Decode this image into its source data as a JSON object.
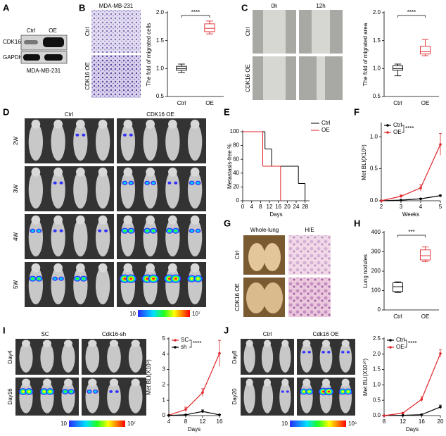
{
  "panels": [
    "A",
    "B",
    "C",
    "D",
    "E",
    "F",
    "G",
    "H",
    "I",
    "J"
  ],
  "blot": {
    "cols": [
      "Ctrl",
      "OE"
    ],
    "rows": [
      "CDK16",
      "GAPDH"
    ],
    "caption": "MDA-MB-231"
  },
  "transwell": {
    "title": "MDA-MB-231",
    "rows": [
      "Ctrl",
      "CDK16 OE"
    ]
  },
  "wound": {
    "cols": [
      "0h",
      "12h"
    ],
    "rows": [
      "Ctrl",
      "CDK16 OE"
    ]
  },
  "imaging_d": {
    "cols": [
      "Ctrl",
      "CDK16 OE"
    ],
    "rows": [
      "2W",
      "3W",
      "4W",
      "5W"
    ],
    "scale": [
      "10",
      "10⁷"
    ]
  },
  "lung": {
    "cols": [
      "Whole-lung",
      "H/E"
    ],
    "rows": [
      "Ctrl",
      "CDK16 OE"
    ]
  },
  "imaging_i": {
    "cols": [
      "SC",
      "Cdk16-sh"
    ],
    "rows": [
      "Day4",
      "Day16"
    ],
    "scale": [
      "10",
      "10⁷"
    ]
  },
  "imaging_j": {
    "cols": [
      "Ctrl",
      "Cdk16 OE"
    ],
    "rows": [
      "Day8",
      "Day20"
    ],
    "scale": [
      "10",
      "10⁶"
    ]
  },
  "chart_data": [
    {
      "type": "box",
      "ylabel": "The fold of migrated cells",
      "categories": [
        "Ctrl",
        "OE"
      ],
      "values": [
        [
          0.93,
          0.97,
          1.0,
          1.04,
          1.08
        ],
        [
          1.62,
          1.66,
          1.72,
          1.8,
          1.85
        ]
      ],
      "colors": [
        "#000000",
        "#e0262a"
      ],
      "ylim": [
        0.5,
        2.0
      ],
      "yticks": [
        0.5,
        {
          "value": 1.0,
          "label": "1.0"
        },
        1.5,
        {
          "value": 2.0,
          "label": "2.0"
        }
      ],
      "annotation": "****"
    },
    {
      "type": "box",
      "ylabel": "The fold of migrated area",
      "categories": [
        "Ctrl",
        "OE"
      ],
      "values": [
        [
          0.87,
          0.97,
          1.0,
          1.05,
          1.08
        ],
        [
          1.23,
          1.26,
          1.3,
          1.4,
          1.52
        ]
      ],
      "colors": [
        "#000000",
        "#e0262a"
      ],
      "ylim": [
        0.5,
        2.0
      ],
      "yticks": [
        0.5,
        {
          "value": 1.0,
          "label": "1.0"
        },
        1.5,
        {
          "value": 2.0,
          "label": "2.0"
        }
      ],
      "annotation": "****"
    },
    {
      "type": "step",
      "ylabel": "Metastasis-free %",
      "xlabel": "Days",
      "series": [
        {
          "name": "Ctrl",
          "color": "#000000",
          "x": [
            0,
            10,
            13,
            25,
            28
          ],
          "values": [
            100,
            75,
            50,
            25,
            0
          ]
        },
        {
          "name": "OE",
          "color": "#e0262a",
          "x": [
            0,
            9,
            17
          ],
          "values": [
            100,
            50,
            0
          ]
        }
      ],
      "xlim": [
        0,
        30
      ],
      "xticks": [
        0,
        4,
        8,
        12,
        16,
        20,
        24,
        28
      ],
      "ylim": [
        0,
        100
      ],
      "yticks": [
        0,
        20,
        40,
        60,
        80,
        100
      ],
      "legend": "upper right"
    },
    {
      "type": "line",
      "ylabel": "Met BLI(X10⁸)",
      "xlabel": "Weeks",
      "x": [
        2,
        3,
        4,
        5
      ],
      "series": [
        {
          "name": "Ctrl",
          "color": "#000000",
          "values": [
            0.0,
            0.01,
            0.03,
            0.08
          ],
          "errors": [
            0.0,
            0.0,
            0.01,
            0.01
          ]
        },
        {
          "name": "OE",
          "color": "#e0262a",
          "values": [
            0.0,
            0.07,
            0.2,
            0.88
          ],
          "errors": [
            0.01,
            0.02,
            0.05,
            0.17
          ]
        }
      ],
      "xlim": [
        2,
        5
      ],
      "xticks": [
        2,
        3,
        4,
        5
      ],
      "ylim": [
        0,
        1.2
      ],
      "yticks": [
        {
          "value": 0,
          "label": "0.0"
        },
        0.5,
        {
          "value": 1.0,
          "label": "1.0"
        }
      ],
      "legend": "upper left",
      "annotation": "****"
    },
    {
      "type": "box",
      "ylabel": "Lung nodules",
      "categories": [
        "Ctrl",
        "OE"
      ],
      "values": [
        [
          90,
          95,
          120,
          140,
          145
        ],
        [
          250,
          258,
          280,
          310,
          325
        ]
      ],
      "colors": [
        "#000000",
        "#e0262a"
      ],
      "ylim": [
        0,
        400
      ],
      "yticks": [
        0,
        100,
        200,
        300,
        400
      ],
      "annotation": "***"
    },
    {
      "type": "line",
      "ylabel": "Met BLI(X10⁸)",
      "xlabel": "Days",
      "x": [
        4,
        8,
        12,
        16
      ],
      "series": [
        {
          "name": "SC",
          "color": "#e0262a",
          "values": [
            0.02,
            0.4,
            1.5,
            4.05
          ],
          "errors": [
            0.01,
            0.15,
            0.25,
            0.85
          ]
        },
        {
          "name": "sh",
          "color": "#000000",
          "values": [
            0.01,
            0.05,
            0.27,
            0.05
          ],
          "errors": [
            0.0,
            0.02,
            0.1,
            0.02
          ]
        }
      ],
      "xlim": [
        4,
        16
      ],
      "xticks": [
        4,
        8,
        12,
        16
      ],
      "ylim": [
        0,
        5
      ],
      "yticks": [
        0,
        1,
        2,
        3,
        4,
        5
      ],
      "legend": "upper left",
      "annotation": "****"
    },
    {
      "type": "line",
      "ylabel": "Met BLI(X10¹⁰)",
      "xlabel": "Days",
      "x": [
        8,
        12,
        16,
        20
      ],
      "series": [
        {
          "name": "Ctrl",
          "color": "#000000",
          "values": [
            0.0,
            0.01,
            0.03,
            0.28
          ],
          "errors": [
            0.0,
            0.0,
            0.01,
            0.06
          ]
        },
        {
          "name": "OE",
          "color": "#e0262a",
          "values": [
            0.0,
            0.08,
            0.53,
            2.02
          ],
          "errors": [
            0.0,
            0.02,
            0.08,
            0.12
          ]
        }
      ],
      "xlim": [
        8,
        20
      ],
      "xticks": [
        8,
        12,
        16,
        20
      ],
      "ylim": [
        0,
        2.5
      ],
      "yticks": [
        {
          "value": 0,
          "label": "0.0"
        },
        0.5,
        {
          "value": 1.0,
          "label": "1.0"
        },
        1.5,
        {
          "value": 2.0,
          "label": "2.0"
        },
        2.5
      ],
      "legend": "upper left",
      "annotation": "****"
    }
  ]
}
